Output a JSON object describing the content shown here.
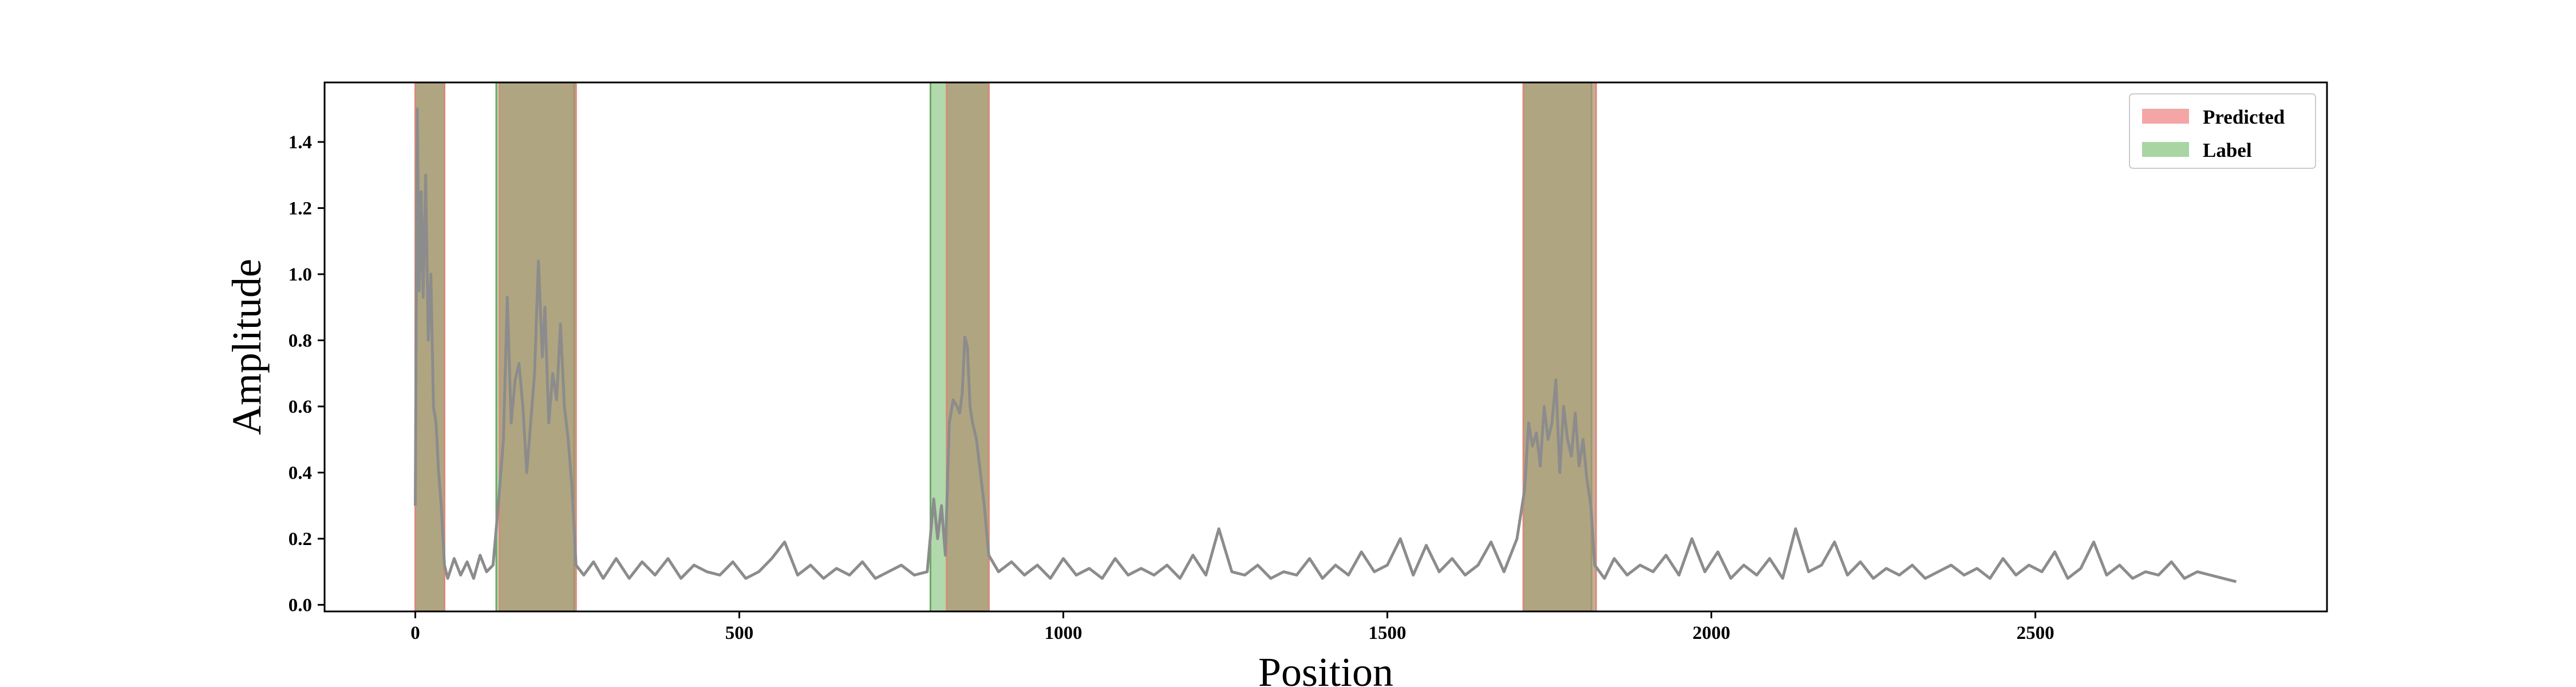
{
  "chart_data": {
    "type": "line",
    "title": "",
    "xlabel": "Position",
    "ylabel": "Amplitude",
    "xlim": [
      -140,
      2950
    ],
    "ylim": [
      -0.02,
      1.58
    ],
    "xticks": [
      0,
      500,
      1000,
      1500,
      2000,
      2500
    ],
    "yticks": [
      0.0,
      0.2,
      0.4,
      0.6,
      0.8,
      1.0,
      1.2,
      1.4
    ],
    "xtick_labels": [
      "0",
      "500",
      "1000",
      "1500",
      "2000",
      "2500"
    ],
    "ytick_labels": [
      "0.0",
      "0.2",
      "0.4",
      "0.6",
      "0.8",
      "1.0",
      "1.2",
      "1.4"
    ],
    "grid": false,
    "legend_position": "top-right",
    "legend": [
      {
        "name": "Predicted",
        "color": "#f4a6a6"
      },
      {
        "name": "Label",
        "color": "#a9d5a3"
      }
    ],
    "predicted_regions": [
      [
        0,
        45
      ],
      [
        130,
        248
      ],
      [
        820,
        885
      ],
      [
        1710,
        1822
      ]
    ],
    "label_regions": [
      [
        0,
        45
      ],
      [
        125,
        245
      ],
      [
        795,
        885
      ],
      [
        1710,
        1815
      ]
    ],
    "line_color": "#8c8c8c",
    "series": [
      {
        "x": [
          0,
          3,
          6,
          9,
          12,
          16,
          20,
          24,
          28,
          32,
          36,
          40,
          45,
          50,
          60,
          70,
          80,
          90,
          100,
          110,
          120,
          128,
          136,
          142,
          148,
          154,
          160,
          166,
          172,
          178,
          184,
          190,
          196,
          200,
          206,
          212,
          218,
          224,
          230,
          236,
          242,
          248,
          260,
          275,
          290,
          310,
          330,
          350,
          370,
          390,
          410,
          430,
          450,
          470,
          490,
          510,
          530,
          550,
          570,
          590,
          610,
          630,
          650,
          670,
          690,
          710,
          730,
          750,
          770,
          790,
          800,
          806,
          812,
          818,
          824,
          830,
          836,
          840,
          844,
          848,
          852,
          856,
          860,
          866,
          872,
          878,
          885,
          900,
          920,
          940,
          960,
          980,
          1000,
          1020,
          1040,
          1060,
          1080,
          1100,
          1120,
          1140,
          1160,
          1180,
          1200,
          1220,
          1240,
          1260,
          1280,
          1300,
          1320,
          1340,
          1360,
          1380,
          1400,
          1420,
          1440,
          1460,
          1480,
          1500,
          1520,
          1540,
          1560,
          1580,
          1600,
          1620,
          1640,
          1660,
          1680,
          1700,
          1712,
          1718,
          1724,
          1730,
          1736,
          1742,
          1748,
          1754,
          1760,
          1766,
          1772,
          1778,
          1784,
          1790,
          1796,
          1802,
          1808,
          1814,
          1820,
          1835,
          1850,
          1870,
          1890,
          1910,
          1930,
          1950,
          1970,
          1990,
          2010,
          2030,
          2050,
          2070,
          2090,
          2110,
          2130,
          2150,
          2170,
          2190,
          2210,
          2230,
          2250,
          2270,
          2290,
          2310,
          2330,
          2350,
          2370,
          2390,
          2410,
          2430,
          2450,
          2470,
          2490,
          2510,
          2530,
          2550,
          2570,
          2590,
          2610,
          2630,
          2650,
          2670,
          2690,
          2710,
          2730,
          2750,
          2770,
          2790,
          2810
        ],
        "y": [
          0.3,
          1.5,
          0.95,
          1.25,
          0.93,
          1.3,
          0.8,
          1.0,
          0.6,
          0.55,
          0.4,
          0.3,
          0.12,
          0.08,
          0.14,
          0.09,
          0.13,
          0.08,
          0.15,
          0.1,
          0.12,
          0.3,
          0.5,
          0.93,
          0.55,
          0.68,
          0.73,
          0.6,
          0.4,
          0.55,
          0.7,
          1.04,
          0.75,
          0.9,
          0.55,
          0.7,
          0.62,
          0.85,
          0.6,
          0.5,
          0.35,
          0.12,
          0.09,
          0.13,
          0.08,
          0.14,
          0.08,
          0.13,
          0.09,
          0.14,
          0.08,
          0.12,
          0.1,
          0.09,
          0.13,
          0.08,
          0.1,
          0.14,
          0.19,
          0.09,
          0.12,
          0.08,
          0.11,
          0.09,
          0.13,
          0.08,
          0.1,
          0.12,
          0.09,
          0.1,
          0.32,
          0.2,
          0.3,
          0.15,
          0.55,
          0.62,
          0.6,
          0.58,
          0.64,
          0.81,
          0.78,
          0.6,
          0.55,
          0.5,
          0.4,
          0.3,
          0.15,
          0.1,
          0.13,
          0.09,
          0.12,
          0.08,
          0.14,
          0.09,
          0.11,
          0.08,
          0.14,
          0.09,
          0.11,
          0.09,
          0.12,
          0.08,
          0.15,
          0.09,
          0.23,
          0.1,
          0.09,
          0.12,
          0.08,
          0.1,
          0.09,
          0.14,
          0.08,
          0.12,
          0.09,
          0.16,
          0.1,
          0.12,
          0.2,
          0.09,
          0.18,
          0.1,
          0.14,
          0.09,
          0.12,
          0.19,
          0.1,
          0.2,
          0.35,
          0.55,
          0.48,
          0.52,
          0.42,
          0.6,
          0.5,
          0.55,
          0.68,
          0.4,
          0.6,
          0.5,
          0.45,
          0.58,
          0.42,
          0.5,
          0.38,
          0.3,
          0.12,
          0.08,
          0.14,
          0.09,
          0.12,
          0.1,
          0.15,
          0.09,
          0.2,
          0.1,
          0.16,
          0.08,
          0.12,
          0.09,
          0.14,
          0.08,
          0.23,
          0.1,
          0.12,
          0.19,
          0.09,
          0.13,
          0.08,
          0.11,
          0.09,
          0.12,
          0.08,
          0.1,
          0.12,
          0.09,
          0.11,
          0.08,
          0.14,
          0.09,
          0.12,
          0.1,
          0.16,
          0.08,
          0.11,
          0.19,
          0.09,
          0.12,
          0.08,
          0.1,
          0.09,
          0.13,
          0.08,
          0.1,
          0.09,
          0.08,
          0.07
        ]
      }
    ]
  }
}
